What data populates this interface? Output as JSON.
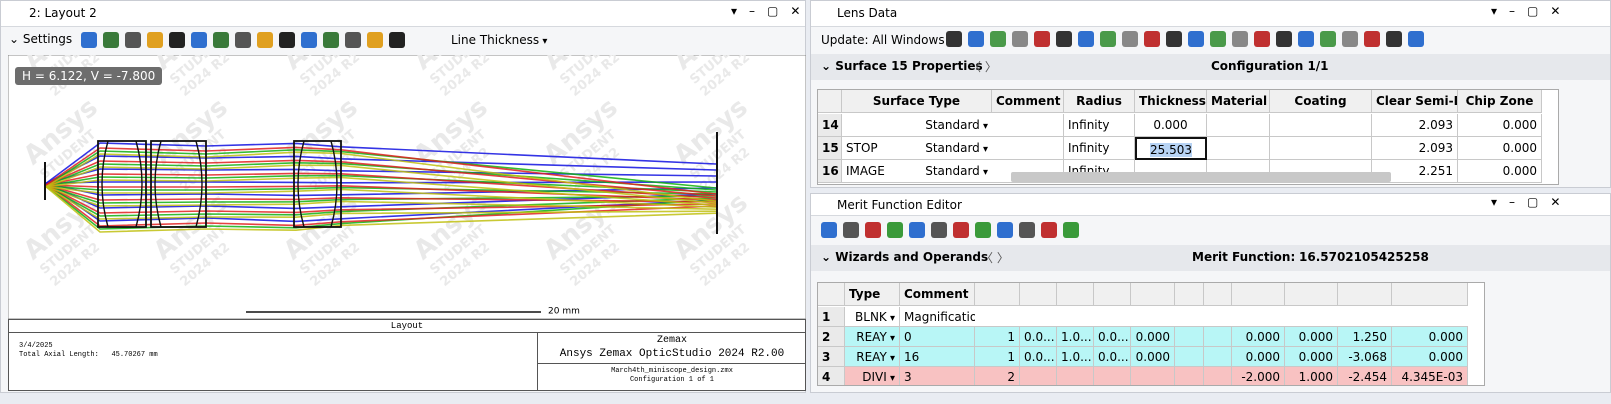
{
  "layout_window": {
    "title": "2: Layout 2",
    "settings": "Settings",
    "line_thickness": "Line Thickness",
    "cursor_readout": "H = 6.122, V = -7.800",
    "watermark": [
      "Ansys",
      "STUDENT",
      "2024 R2"
    ],
    "scale_bar": "20 mm",
    "caption": "Layout",
    "date": "3/4/2025",
    "axial_length_label": "Total Axial Length:",
    "axial_length_value": "45.70267 mm",
    "brand": "Zemax",
    "product": "Ansys Zemax OpticStudio 2024 R2.00",
    "file": "March4th_miniscope_design.zmx",
    "configuration": "Configuration 1 of 1"
  },
  "lens_data": {
    "title": "Lens Data",
    "update": "Update: All Windows",
    "surface": "Surface  15 Properties",
    "configuration": "Configuration 1/1",
    "columns": [
      null,
      "Surface Type",
      "Comment",
      "Radius",
      "Thickness",
      "Material",
      "Coating",
      "Clear Semi-Dia",
      "Chip Zone"
    ],
    "rows": [
      {
        "cells": [
          "14",
          null,
          "Standard",
          null,
          "Infinity",
          "0.000",
          null,
          null,
          "2.093",
          "0.000"
        ]
      },
      {
        "cells": [
          "15",
          "STOP",
          "Standard",
          null,
          "Infinity",
          "25.503",
          null,
          null,
          "2.093",
          "0.000"
        ]
      },
      {
        "cells": [
          "16",
          "IMAGE",
          "Standard",
          null,
          "Infinity",
          null,
          null,
          null,
          "2.251",
          "0.000"
        ]
      }
    ]
  },
  "merit_editor": {
    "title": "Merit Function Editor",
    "wizards": "Wizards and Operands",
    "merit_label": "Merit Function:",
    "merit_value": "16.5702105425258",
    "columns": [
      null,
      "Type",
      "Comment"
    ],
    "rows": [
      {
        "color": "#ffffff",
        "cells": [
          "1",
          "BLNK",
          "Magnification",
          null,
          null,
          null,
          null,
          null,
          null,
          null,
          null,
          null,
          null,
          null
        ]
      },
      {
        "color": "#b8f6f6",
        "cells": [
          "2",
          "REAY",
          "0",
          "1",
          "0.0...",
          "1.0...",
          "0.0...",
          "0.000",
          null,
          null,
          "0.000",
          "0.000",
          "1.250",
          "0.000"
        ]
      },
      {
        "color": "#b8f6f6",
        "cells": [
          "3",
          "REAY",
          "16",
          "1",
          "0.0...",
          "1.0...",
          "0.0...",
          "0.000",
          null,
          null,
          "0.000",
          "0.000",
          "-3.068",
          "0.000"
        ]
      },
      {
        "color": "#f8c2c2",
        "cells": [
          "4",
          "DIVI",
          "3",
          "2",
          null,
          null,
          null,
          null,
          null,
          null,
          "-2.000",
          "1.000",
          "-2.454",
          "4.345E-03"
        ]
      }
    ]
  }
}
